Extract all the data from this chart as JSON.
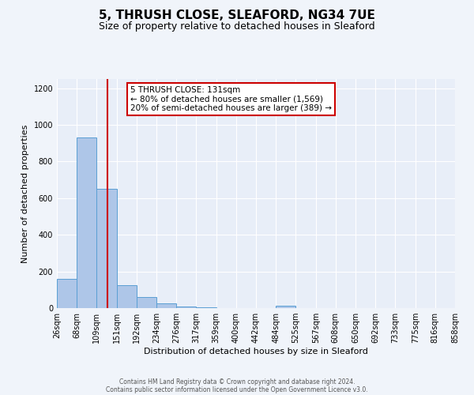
{
  "title": "5, THRUSH CLOSE, SLEAFORD, NG34 7UE",
  "subtitle": "Size of property relative to detached houses in Sleaford",
  "xlabel": "Distribution of detached houses by size in Sleaford",
  "ylabel": "Number of detached properties",
  "bar_edges": [
    26,
    68,
    109,
    151,
    192,
    234,
    276,
    317,
    359,
    400,
    442,
    484,
    525,
    567,
    608,
    650,
    692,
    733,
    775,
    816,
    858
  ],
  "bar_heights": [
    160,
    930,
    650,
    125,
    60,
    28,
    10,
    5,
    0,
    0,
    0,
    12,
    0,
    0,
    0,
    0,
    0,
    0,
    0,
    0
  ],
  "bar_color": "#aec6e8",
  "bar_edge_color": "#5a9fd4",
  "vline_x": 131,
  "vline_color": "#cc0000",
  "annotation_lines": [
    "5 THRUSH CLOSE: 131sqm",
    "← 80% of detached houses are smaller (1,569)",
    "20% of semi-detached houses are larger (389) →"
  ],
  "ylim": [
    0,
    1250
  ],
  "yticks": [
    0,
    200,
    400,
    600,
    800,
    1000,
    1200
  ],
  "footer1": "Contains HM Land Registry data © Crown copyright and database right 2024.",
  "footer2": "Contains public sector information licensed under the Open Government Licence v3.0.",
  "bg_color": "#f0f4fa",
  "plot_bg_color": "#e8eef8",
  "title_fontsize": 11,
  "subtitle_fontsize": 9,
  "tick_fontsize": 7,
  "axis_label_fontsize": 8,
  "footer_fontsize": 5.5,
  "ann_fontsize": 7.5
}
